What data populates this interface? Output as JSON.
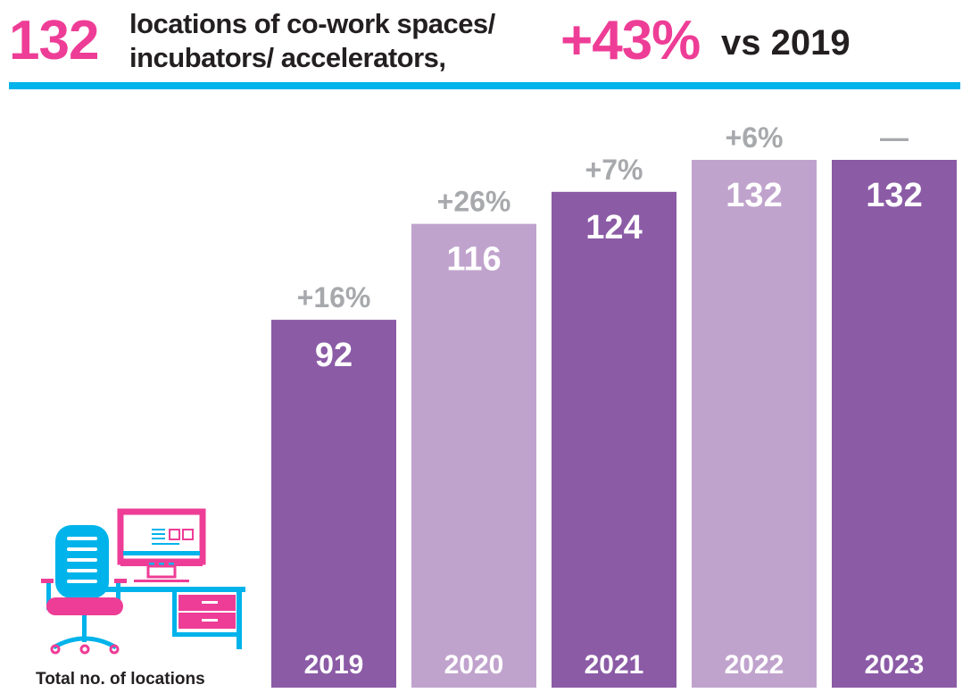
{
  "header": {
    "total": "132",
    "description_line1": "locations of co-work spaces/",
    "description_line2": "incubators/ accelerators,",
    "growth": "+43%",
    "comparison": "vs 2019"
  },
  "caption": "Total no. of locations",
  "icon": "office-desk-chair-computer-icon",
  "colors": {
    "accent_pink": "#ee3d96",
    "accent_blue": "#00b3ea",
    "bar_dark": "#8b5ba6",
    "bar_light": "#c0a3cd",
    "change_label": "#a7a9ac"
  },
  "chart_data": {
    "type": "bar",
    "categories": [
      "2019",
      "2020",
      "2021",
      "2022",
      "2023"
    ],
    "values": [
      92,
      116,
      124,
      132,
      132
    ],
    "data_labels": [
      "92",
      "116",
      "124",
      "132",
      "132"
    ],
    "change_labels": [
      "+16%",
      "+26%",
      "+7%",
      "+6%",
      "—"
    ],
    "ylabel": "Total no. of locations",
    "ylim": [
      0,
      132
    ],
    "grid": false,
    "legend": "none"
  }
}
